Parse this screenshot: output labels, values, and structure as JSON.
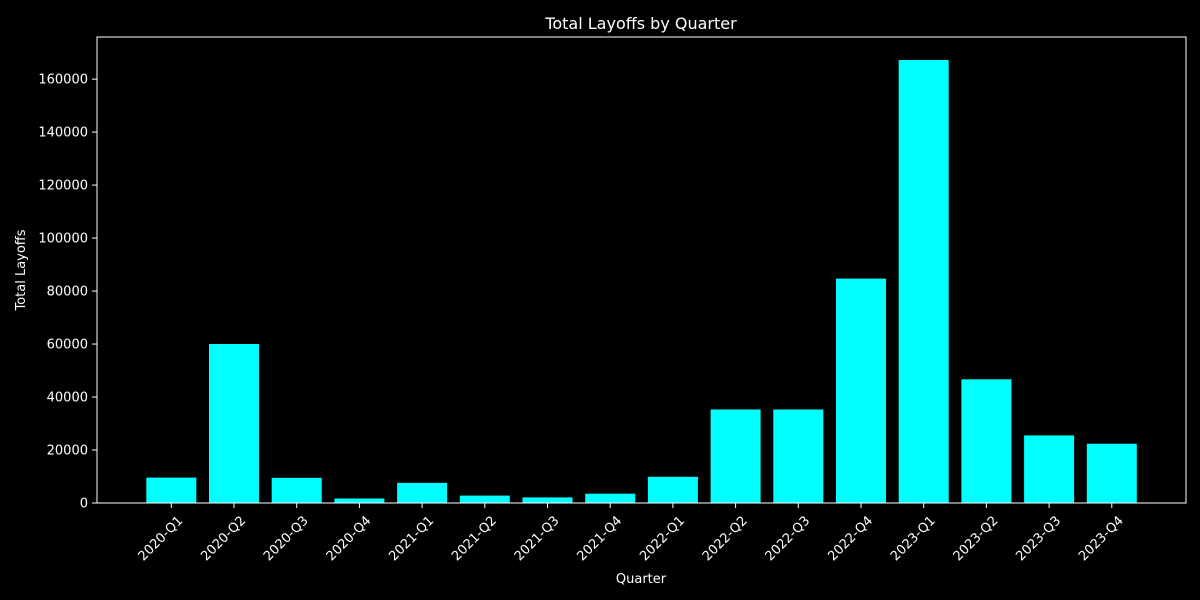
{
  "chart_data": {
    "type": "bar",
    "title": "Total Layoffs by Quarter",
    "xlabel": "Quarter",
    "ylabel": "Total Layoffs",
    "categories": [
      "2020-Q1",
      "2020-Q2",
      "2020-Q3",
      "2020-Q4",
      "2021-Q1",
      "2021-Q2",
      "2021-Q3",
      "2021-Q4",
      "2022-Q1",
      "2022-Q2",
      "2022-Q3",
      "2022-Q4",
      "2023-Q1",
      "2023-Q2",
      "2023-Q3",
      "2023-Q4"
    ],
    "values": [
      9600,
      60000,
      9500,
      1700,
      7600,
      2800,
      2100,
      3500,
      9900,
      35300,
      35300,
      84700,
      167200,
      46700,
      25500,
      22400
    ],
    "ylim": [
      0,
      175900
    ],
    "yticks": [
      0,
      20000,
      40000,
      60000,
      80000,
      100000,
      120000,
      140000,
      160000
    ],
    "grid": false,
    "legend": "none",
    "colors": {
      "background": "#000000",
      "bar": "#00ffff",
      "axis": "#ffffff",
      "text": "#ffffff"
    }
  }
}
